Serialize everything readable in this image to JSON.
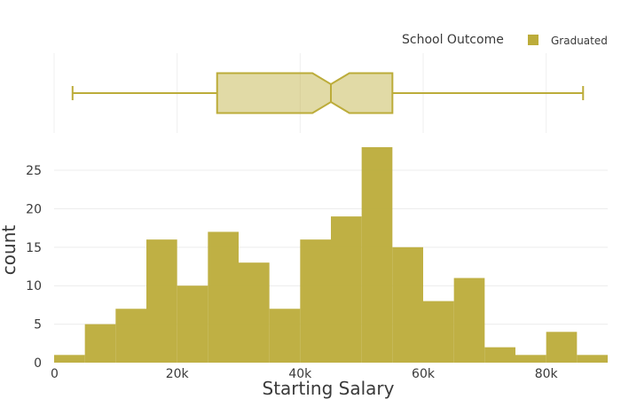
{
  "chart_data": {
    "type": "histogram",
    "marginal": "box",
    "xlabel": "Starting Salary",
    "ylabel": "count",
    "xlim": [
      0,
      90000
    ],
    "ylim": [
      0,
      28
    ],
    "grid": true,
    "x_ticks": [
      {
        "value": 0,
        "label": "0"
      },
      {
        "value": 20000,
        "label": "20k"
      },
      {
        "value": 40000,
        "label": "40k"
      },
      {
        "value": 60000,
        "label": "60k"
      },
      {
        "value": 80000,
        "label": "80k"
      }
    ],
    "y_ticks": [
      0,
      5,
      10,
      15,
      20,
      25
    ],
    "legend": {
      "title": "School Outcome",
      "position": "top-right",
      "entries": [
        {
          "name": "Graduated",
          "color": "#bcac3a"
        }
      ]
    },
    "series": [
      {
        "name": "Graduated",
        "color": "#bcac3a",
        "bins": [
          {
            "x0": 0,
            "x1": 5000,
            "count": 1
          },
          {
            "x0": 5000,
            "x1": 10000,
            "count": 5
          },
          {
            "x0": 10000,
            "x1": 15000,
            "count": 7
          },
          {
            "x0": 15000,
            "x1": 20000,
            "count": 16
          },
          {
            "x0": 20000,
            "x1": 25000,
            "count": 10
          },
          {
            "x0": 25000,
            "x1": 30000,
            "count": 17
          },
          {
            "x0": 30000,
            "x1": 35000,
            "count": 13
          },
          {
            "x0": 35000,
            "x1": 40000,
            "count": 7
          },
          {
            "x0": 40000,
            "x1": 45000,
            "count": 16
          },
          {
            "x0": 45000,
            "x1": 50000,
            "count": 19
          },
          {
            "x0": 50000,
            "x1": 55000,
            "count": 28
          },
          {
            "x0": 55000,
            "x1": 60000,
            "count": 15
          },
          {
            "x0": 60000,
            "x1": 65000,
            "count": 8
          },
          {
            "x0": 65000,
            "x1": 70000,
            "count": 11
          },
          {
            "x0": 70000,
            "x1": 75000,
            "count": 2
          },
          {
            "x0": 75000,
            "x1": 80000,
            "count": 1
          },
          {
            "x0": 80000,
            "x1": 85000,
            "count": 4
          },
          {
            "x0": 85000,
            "x1": 90000,
            "count": 1
          }
        ],
        "box": {
          "min": 3000,
          "q1": 26500,
          "median": 45000,
          "q3": 55000,
          "max": 86000,
          "notch_low": 42000,
          "notch_high": 48000
        }
      }
    ]
  }
}
